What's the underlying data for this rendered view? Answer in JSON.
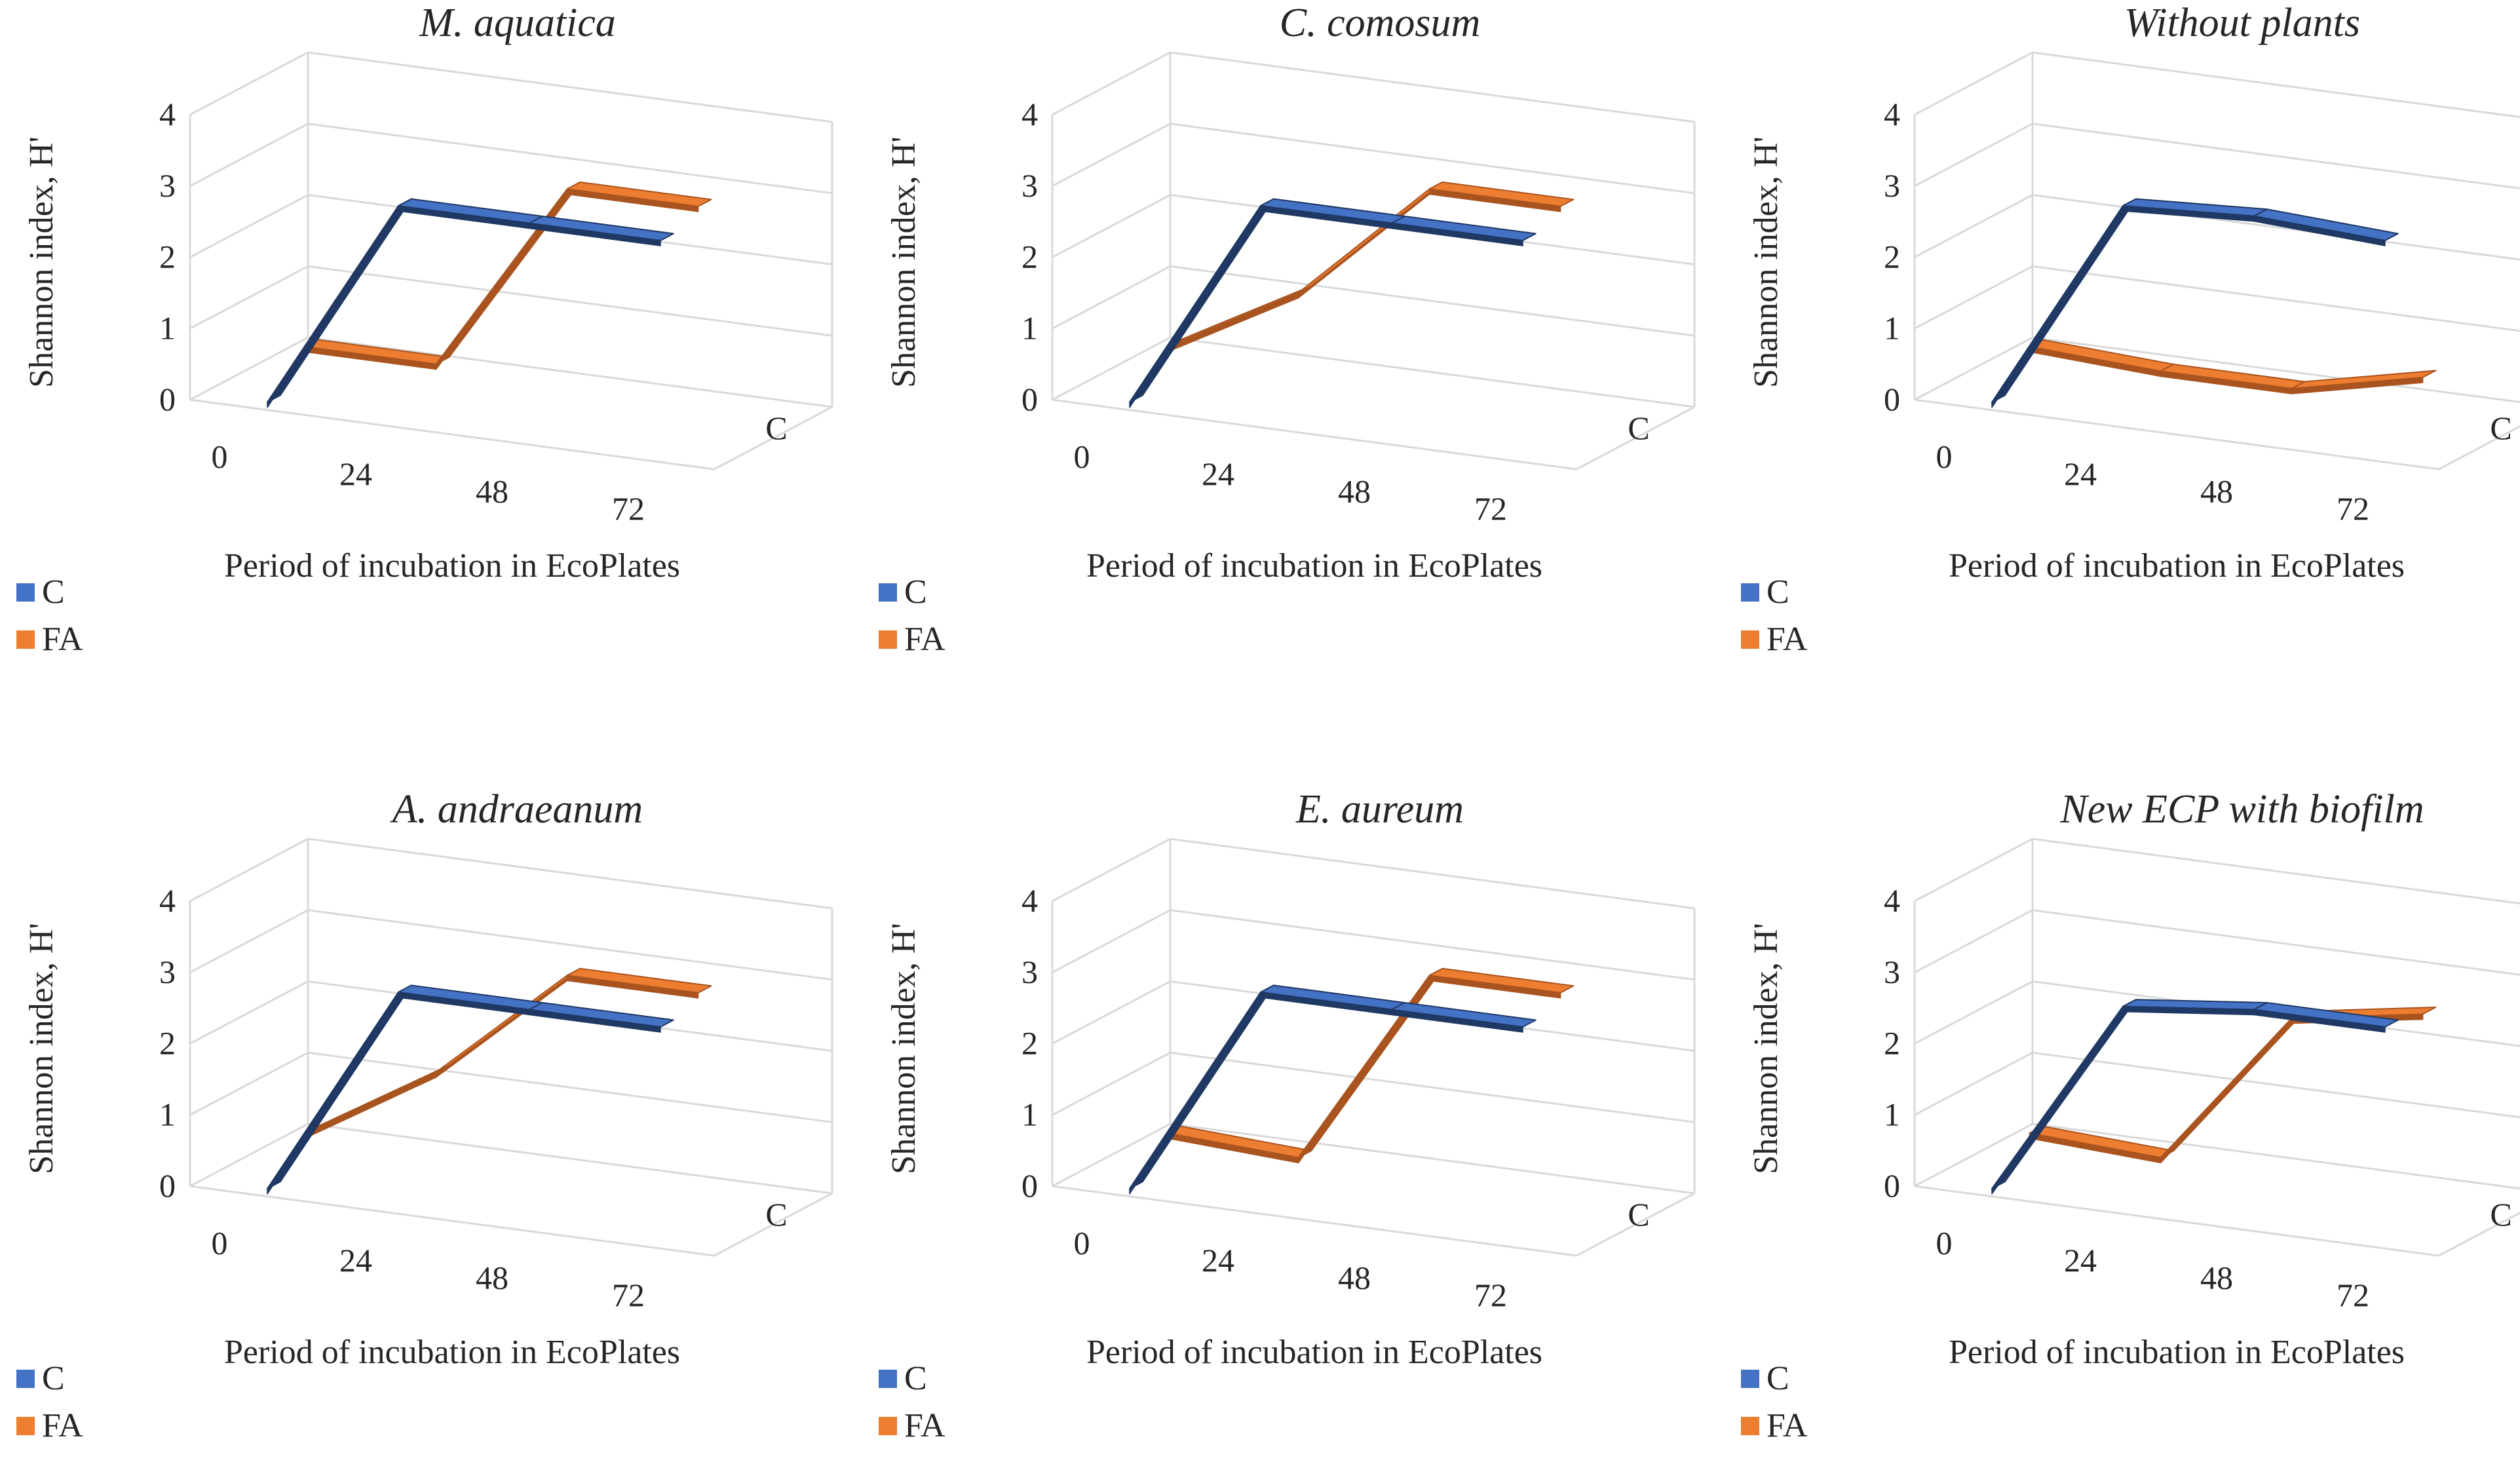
{
  "chart_data": [
    {
      "type": "line",
      "style": "3d-line",
      "title": "M. aquatica",
      "categories": [
        "0",
        "24",
        "48",
        "72"
      ],
      "xlabel": "Period of incubation in EcoPlates",
      "ylabel": "Shannon index, H'",
      "depth_label": "C",
      "ylim": [
        0,
        4
      ],
      "yticks": [
        "0",
        "1",
        "2",
        "3",
        "4"
      ],
      "legend_position": "bottom-left",
      "series": [
        {
          "name": "C",
          "values": [
            0.0,
            3.0,
            3.0,
            3.0
          ],
          "color": "#4472C4",
          "side": "#1F3864"
        },
        {
          "name": "FA",
          "values": [
            0.5,
            0.5,
            3.2,
            3.2
          ],
          "color": "#ED7D31",
          "side": "#A9541F"
        }
      ]
    },
    {
      "type": "line",
      "style": "3d-line",
      "title": "C. comosum",
      "categories": [
        "0",
        "24",
        "48",
        "72"
      ],
      "xlabel": "Period of incubation in EcoPlates",
      "ylabel": "Shannon index, H'",
      "depth_label": "C",
      "ylim": [
        0,
        4
      ],
      "yticks": [
        "0",
        "1",
        "2",
        "3",
        "4"
      ],
      "legend_position": "bottom-left",
      "series": [
        {
          "name": "C",
          "values": [
            0.0,
            3.0,
            3.0,
            3.0
          ],
          "color": "#4472C4",
          "side": "#1F3864"
        },
        {
          "name": "FA",
          "values": [
            0.5,
            1.5,
            3.2,
            3.2
          ],
          "color": "#ED7D31",
          "side": "#A9541F"
        }
      ]
    },
    {
      "type": "line",
      "style": "3d-line",
      "title": "Without plants",
      "categories": [
        "0",
        "24",
        "48",
        "72"
      ],
      "xlabel": "Period of incubation in EcoPlates",
      "ylabel": "Shannon index, H'",
      "depth_label": "C",
      "ylim": [
        0,
        4
      ],
      "yticks": [
        "0",
        "1",
        "2",
        "3",
        "4"
      ],
      "legend_position": "bottom-left",
      "series": [
        {
          "name": "C",
          "values": [
            0.0,
            3.0,
            3.1,
            3.0
          ],
          "color": "#4472C4",
          "side": "#1F3864"
        },
        {
          "name": "FA",
          "values": [
            0.5,
            0.4,
            0.4,
            0.8
          ],
          "color": "#ED7D31",
          "side": "#A9541F"
        }
      ]
    },
    {
      "type": "line",
      "style": "3d-line",
      "title": "A. andraeanum",
      "categories": [
        "0",
        "24",
        "48",
        "72"
      ],
      "xlabel": "Period of incubation in EcoPlates",
      "ylabel": "Shannon index, H'",
      "depth_label": "C",
      "ylim": [
        0,
        4
      ],
      "yticks": [
        "0",
        "1",
        "2",
        "3",
        "4"
      ],
      "legend_position": "bottom-left",
      "series": [
        {
          "name": "C",
          "values": [
            0.0,
            3.0,
            3.0,
            3.0
          ],
          "color": "#4472C4",
          "side": "#1F3864"
        },
        {
          "name": "FA",
          "values": [
            0.5,
            1.6,
            3.2,
            3.2
          ],
          "color": "#ED7D31",
          "side": "#A9541F"
        }
      ]
    },
    {
      "type": "line",
      "style": "3d-line",
      "title": "E. aureum",
      "categories": [
        "0",
        "24",
        "48",
        "72"
      ],
      "xlabel": "Period of incubation in EcoPlates",
      "ylabel": "Shannon index, H'",
      "depth_label": "C",
      "ylim": [
        0,
        4
      ],
      "yticks": [
        "0",
        "1",
        "2",
        "3",
        "4"
      ],
      "legend_position": "bottom-left",
      "series": [
        {
          "name": "C",
          "values": [
            0.0,
            3.0,
            3.0,
            3.0
          ],
          "color": "#4472C4",
          "side": "#1F3864"
        },
        {
          "name": "FA",
          "values": [
            0.5,
            0.4,
            3.2,
            3.2
          ],
          "color": "#ED7D31",
          "side": "#A9541F"
        }
      ]
    },
    {
      "type": "line",
      "style": "3d-line",
      "title": "New ECP with biofilm",
      "categories": [
        "0",
        "24",
        "48",
        "72"
      ],
      "xlabel": "Period of incubation in EcoPlates",
      "ylabel": "Shannon index, H'",
      "depth_label": "C",
      "ylim": [
        0,
        4
      ],
      "yticks": [
        "0",
        "1",
        "2",
        "3",
        "4"
      ],
      "legend_position": "bottom-left",
      "series": [
        {
          "name": "C",
          "values": [
            0.0,
            2.8,
            3.0,
            3.0
          ],
          "color": "#4472C4",
          "side": "#1F3864"
        },
        {
          "name": "FA",
          "values": [
            0.5,
            0.4,
            2.6,
            2.9
          ],
          "color": "#ED7D31",
          "side": "#A9541F"
        }
      ]
    }
  ]
}
